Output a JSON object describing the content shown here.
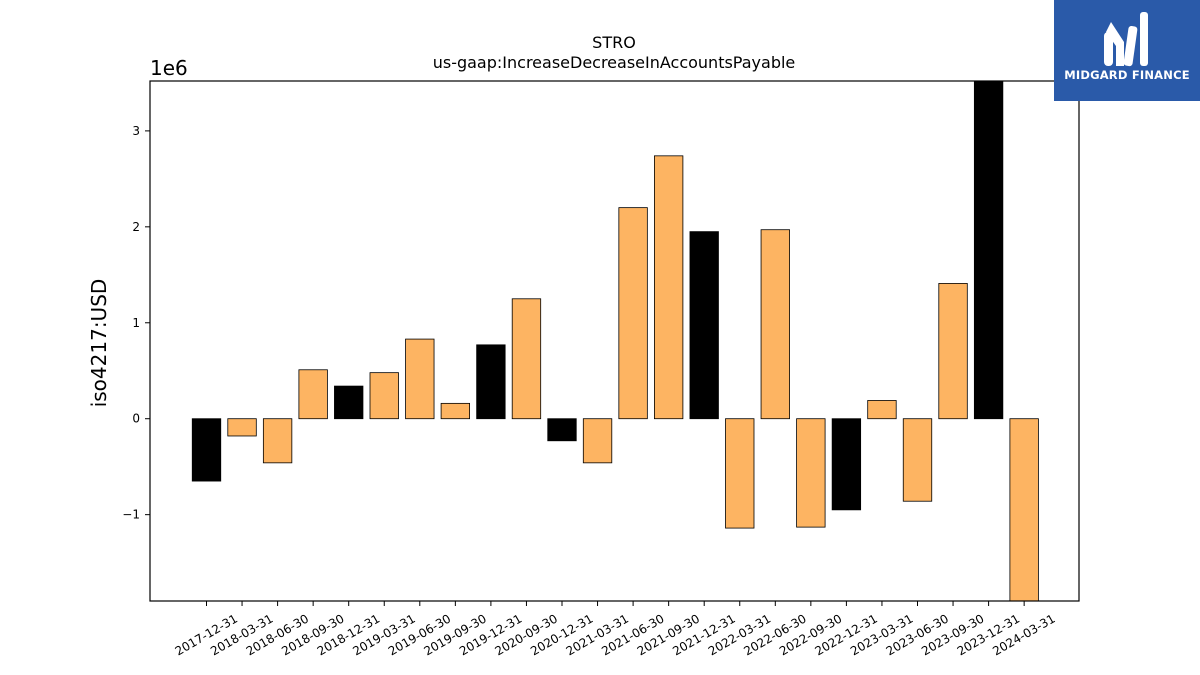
{
  "chart_data": {
    "type": "bar",
    "title": "STRO",
    "subtitle": "us-gaap:IncreaseDecreaseInAccountsPayable",
    "ylabel": "iso4217:USD",
    "xlabel": "",
    "offset_label": "1e6",
    "ylim": [
      -1.9,
      3.52
    ],
    "yticks": [
      -1,
      0,
      1,
      2,
      3
    ],
    "ytick_labels": [
      "−1",
      "0",
      "1",
      "2",
      "3"
    ],
    "grid": false,
    "categories": [
      "2017-12-31",
      "2018-03-31",
      "2018-06-30",
      "2018-09-30",
      "2018-12-31",
      "2019-03-31",
      "2019-06-30",
      "2019-09-30",
      "2019-12-31",
      "2020-09-30",
      "2020-12-31",
      "2021-03-31",
      "2021-06-30",
      "2021-09-30",
      "2021-12-31",
      "2022-03-31",
      "2022-06-30",
      "2022-09-30",
      "2022-12-31",
      "2023-03-31",
      "2023-06-30",
      "2023-09-30",
      "2023-12-31",
      "2024-03-31"
    ],
    "values": [
      -0.65,
      -0.18,
      -0.46,
      0.51,
      0.34,
      0.48,
      0.83,
      0.16,
      0.77,
      1.25,
      -0.23,
      -0.46,
      2.2,
      2.74,
      1.95,
      -1.14,
      1.97,
      -1.13,
      -0.95,
      0.19,
      -0.86,
      1.41,
      3.52,
      -1.9
    ],
    "bar_colors": [
      "#000000",
      "#fdb462",
      "#fdb462",
      "#fdb462",
      "#000000",
      "#fdb462",
      "#fdb462",
      "#fdb462",
      "#000000",
      "#fdb462",
      "#000000",
      "#fdb462",
      "#fdb462",
      "#fdb462",
      "#000000",
      "#fdb462",
      "#fdb462",
      "#fdb462",
      "#000000",
      "#fdb462",
      "#fdb462",
      "#fdb462",
      "#000000",
      "#fdb462"
    ]
  },
  "logo": {
    "text": "MIDGARD FINANCE",
    "color": "#2a5aa9"
  }
}
